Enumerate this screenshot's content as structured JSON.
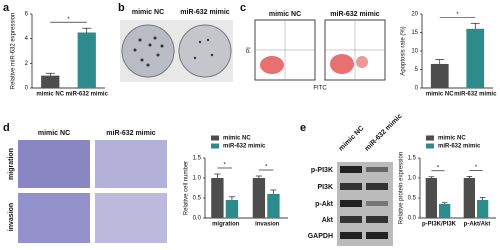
{
  "figure": {
    "panel_labels": [
      "a",
      "b",
      "c",
      "d",
      "e"
    ],
    "b": {
      "labels": [
        "mimic NC",
        "miR-632 mimic"
      ]
    },
    "c": {
      "labels": [
        "mimic NC",
        "miR-632 mimic"
      ],
      "y_label": "PI",
      "x_label": "FITC"
    },
    "d": {
      "labels": [
        "mimic NC",
        "miR-632 mimic"
      ],
      "row_labels": [
        "migration",
        "invasion"
      ]
    },
    "e": {
      "column_labels": [
        "mimic NC",
        "miR-632 mimic"
      ],
      "row_labels": [
        "p-PI3K",
        "PI3K",
        "p-Akt",
        "Akt",
        "GAPDH"
      ]
    }
  },
  "chart_data": [
    {
      "type": "bar",
      "y_label": "Relative miR-632 expression",
      "categories": [
        "mimic NC",
        "miR-632 mimic"
      ],
      "values": [
        1.0,
        4.5
      ],
      "errors": [
        0.2,
        0.35
      ],
      "colors": [
        "#4d4d4d",
        "#2e8b8b"
      ],
      "ylim": [
        0,
        6
      ],
      "yticks": [
        0,
        2,
        4,
        6
      ],
      "annotations": [
        "*"
      ]
    },
    {
      "type": "bar",
      "y_label": "Apoptosis rate (%)",
      "categories": [
        "mimic NC",
        "miR-632 mimic"
      ],
      "values": [
        6.5,
        16
      ],
      "errors": [
        1.2,
        1.5
      ],
      "colors": [
        "#4d4d4d",
        "#2e8b8b"
      ],
      "ylim": [
        0,
        20
      ],
      "yticks": [
        0,
        5,
        10,
        15,
        20
      ],
      "annotations": [
        "*"
      ]
    },
    {
      "type": "bar",
      "y_label": "Relative cell number",
      "categories": [
        "migration",
        "invasion"
      ],
      "series": [
        {
          "name": "mimic NC",
          "color": "#4d4d4d",
          "values": [
            1.0,
            1.0
          ],
          "errors": [
            0.1,
            0.05
          ]
        },
        {
          "name": "miR-632 mimic",
          "color": "#2e8b8b",
          "values": [
            0.45,
            0.6
          ],
          "errors": [
            0.08,
            0.1
          ]
        }
      ],
      "ylim": [
        0,
        1.5
      ],
      "yticks": [
        {
          "value": 0,
          "label": "0.0"
        },
        {
          "value": 0.5,
          "label": "0.5"
        },
        {
          "value": 1,
          "label": "1.0"
        },
        {
          "value": 1.5,
          "label": "1.5"
        }
      ],
      "annotations": [
        "*",
        "*"
      ],
      "legend": "top"
    },
    {
      "type": "bar",
      "y_label": "Relative protein expression",
      "categories": [
        "p-PI3K/PI3K",
        "p-Akt/Akt"
      ],
      "series": [
        {
          "name": "mimic NC",
          "color": "#4d4d4d",
          "values": [
            1.0,
            1.0
          ],
          "errors": [
            0.03,
            0.04
          ]
        },
        {
          "name": "miR-632 mimic",
          "color": "#2e8b8b",
          "values": [
            0.35,
            0.45
          ],
          "errors": [
            0.03,
            0.06
          ]
        }
      ],
      "ylim": [
        0,
        1.5
      ],
      "yticks": [
        {
          "value": 0,
          "label": "0.0"
        },
        {
          "value": 0.5,
          "label": "0.5"
        },
        {
          "value": 1,
          "label": "1.0"
        },
        {
          "value": 1.5,
          "label": "1.5"
        }
      ],
      "annotations": [
        "*",
        "*"
      ],
      "legend": "top"
    }
  ]
}
